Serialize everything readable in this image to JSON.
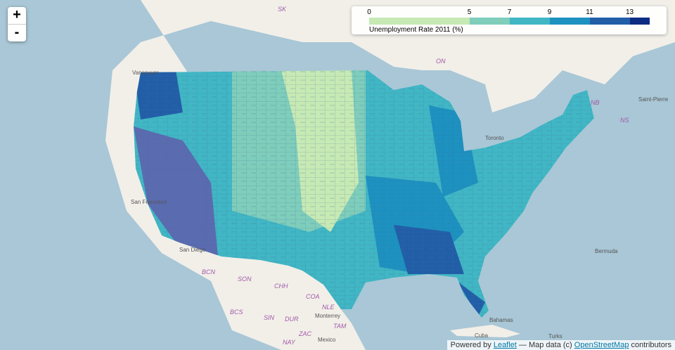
{
  "zoom": {
    "in": "+",
    "out": "-"
  },
  "legend": {
    "title": "Unemployment Rate 2011 (%)",
    "ticks": [
      0,
      5,
      7,
      9,
      11,
      13
    ],
    "lim": [
      0,
      14
    ],
    "colors": [
      "#c7e9b4",
      "#7fcdbb",
      "#41b6c4",
      "#1d91c0",
      "#225ea8",
      "#0c2c84"
    ]
  },
  "labels": [
    "SK",
    "ON",
    "NB",
    "NS",
    "Saint-Pierre",
    "Vancouver",
    "San Francisco",
    "San Diego",
    "BCN",
    "SON",
    "CHH",
    "COA",
    "NLE",
    "TAM",
    "BCS",
    "SIN",
    "DUR",
    "ZAC",
    "NAY",
    "Monterrey",
    "Mexico",
    "Bermuda",
    "Bahamas",
    "Cuba",
    "Turks",
    "Toronto"
  ],
  "attribution": {
    "prefix": "Powered by",
    "leaflet": "Leaflet",
    "middle": "— Map data (c)",
    "osm": "OpenStreetMap",
    "suffix": "contributors"
  }
}
